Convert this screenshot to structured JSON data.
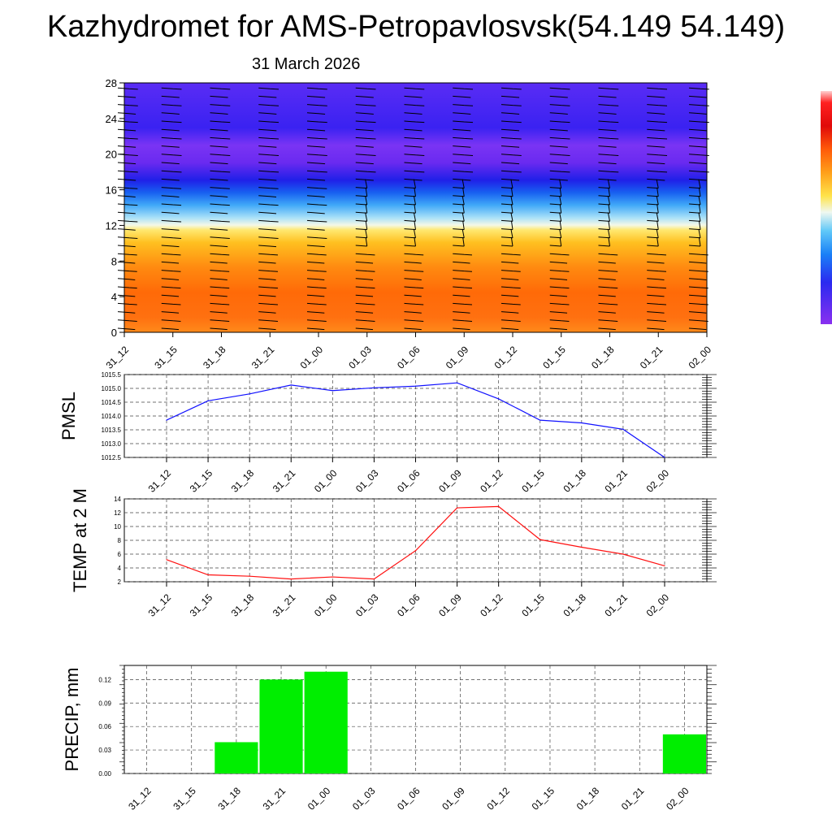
{
  "title": "Kazhydromet for AMS-Petropavlosvsk(54.149 54.149)",
  "subtitle": "31 March 2026",
  "colors": {
    "pmsl": "#1010ff",
    "temp": "#ff1010",
    "precip": "#00ee00",
    "barb": "#000000"
  },
  "chart_data": [
    {
      "type": "heatmap",
      "description_units": "height levels",
      "x": [
        "31_12",
        "31_15",
        "31_18",
        "31_21",
        "01_00",
        "01_03",
        "01_06",
        "01_09",
        "01_12",
        "01_15",
        "01_18",
        "01_21",
        "02_00"
      ],
      "yticks": [
        0,
        4,
        8,
        12,
        16,
        20,
        24,
        28
      ],
      "ylim": [
        0,
        28
      ],
      "colorbar_colors": [
        "#7b2cf5",
        "#3a1cf6",
        "#1a4df7",
        "#1ea0f7",
        "#7fd8f7",
        "#f8f8c8",
        "#ffe34a",
        "#ffb41e",
        "#ff7a0a",
        "#f53a0a",
        "#e00a0a",
        "#ffb4b4"
      ],
      "note": "wind barbs overlaid"
    },
    {
      "type": "line",
      "ylabel": "PMSL",
      "x": [
        "31_12",
        "31_15",
        "31_18",
        "31_21",
        "01_00",
        "01_03",
        "01_06",
        "01_09",
        "01_12",
        "01_15",
        "01_18",
        "01_21",
        "02_00"
      ],
      "yticks": [
        "1012.5",
        "1013.0",
        "1013.5",
        "1014.0",
        "1014.5",
        "1015.0",
        "1015.5"
      ],
      "ylim": [
        1012.5,
        1015.5
      ],
      "series": [
        {
          "values": [
            1013.85,
            1014.55,
            1014.8,
            1015.12,
            1014.92,
            1015.02,
            1015.08,
            1015.2,
            1014.62,
            1013.85,
            1013.75,
            1013.52,
            1012.5
          ]
        }
      ]
    },
    {
      "type": "line",
      "ylabel": "TEMP at 2 M",
      "x": [
        "31_12",
        "31_15",
        "31_18",
        "31_21",
        "01_00",
        "01_03",
        "01_06",
        "01_09",
        "01_12",
        "01_15",
        "01_18",
        "01_21",
        "02_00"
      ],
      "yticks": [
        "2",
        "4",
        "6",
        "8",
        "10",
        "12",
        "14"
      ],
      "ylim": [
        2,
        14
      ],
      "series": [
        {
          "values": [
            5.2,
            3.0,
            2.8,
            2.4,
            2.7,
            2.4,
            6.5,
            12.7,
            12.9,
            8.1,
            7.0,
            6.0,
            4.3
          ]
        }
      ]
    },
    {
      "type": "bar",
      "ylabel": "PRECIP, mm",
      "x": [
        "31_12",
        "31_15",
        "31_18",
        "31_21",
        "01_00",
        "01_03",
        "01_06",
        "01_09",
        "01_12",
        "01_15",
        "01_18",
        "01_21",
        "02_00"
      ],
      "yticks": [
        "0.00",
        "0.03",
        "0.06",
        "0.09",
        "0.12"
      ],
      "ylim": [
        0,
        0.138
      ],
      "values": [
        0,
        0,
        0.04,
        0.12,
        0.13,
        0,
        0,
        0,
        0,
        0,
        0,
        0,
        0.05
      ]
    }
  ]
}
